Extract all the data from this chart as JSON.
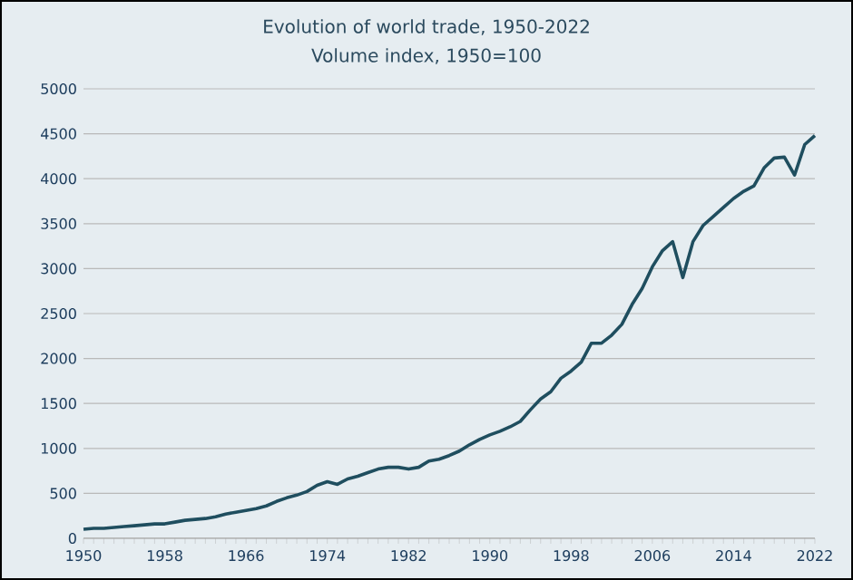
{
  "chart_data": {
    "type": "line",
    "title": "Evolution of world trade, 1950-2022",
    "subtitle": "Volume index, 1950=100",
    "x": [
      1950,
      1951,
      1952,
      1953,
      1954,
      1955,
      1956,
      1957,
      1958,
      1959,
      1960,
      1961,
      1962,
      1963,
      1964,
      1965,
      1966,
      1967,
      1968,
      1969,
      1970,
      1971,
      1972,
      1973,
      1974,
      1975,
      1976,
      1977,
      1978,
      1979,
      1980,
      1981,
      1982,
      1983,
      1984,
      1985,
      1986,
      1987,
      1988,
      1989,
      1990,
      1991,
      1992,
      1993,
      1994,
      1995,
      1996,
      1997,
      1998,
      1999,
      2000,
      2001,
      2002,
      2003,
      2004,
      2005,
      2006,
      2007,
      2008,
      2009,
      2010,
      2011,
      2012,
      2013,
      2014,
      2015,
      2016,
      2017,
      2018,
      2019,
      2020,
      2021,
      2022
    ],
    "series": [
      {
        "color": "#1f4e5f",
        "values": [
          100,
          110,
          110,
          120,
          130,
          140,
          150,
          160,
          160,
          180,
          200,
          210,
          220,
          240,
          270,
          290,
          310,
          330,
          360,
          410,
          450,
          480,
          520,
          590,
          630,
          600,
          660,
          690,
          730,
          770,
          790,
          790,
          770,
          790,
          860,
          880,
          920,
          970,
          1040,
          1100,
          1150,
          1190,
          1240,
          1300,
          1430,
          1550,
          1630,
          1780,
          1860,
          1960,
          2170,
          2170,
          2260,
          2380,
          2600,
          2780,
          3020,
          3200,
          3300,
          2900,
          3300,
          3480,
          3580,
          3680,
          3780,
          3860,
          3920,
          4120,
          4230,
          4240,
          4040,
          4380,
          4480
        ]
      }
    ],
    "xlim": [
      1950,
      2022
    ],
    "ylim": [
      0,
      5000
    ],
    "xticks": [
      1950,
      1958,
      1966,
      1974,
      1982,
      1990,
      1998,
      2006,
      2014,
      2022
    ],
    "yticks": [
      0,
      500,
      1000,
      1500,
      2000,
      2500,
      3000,
      3500,
      4000,
      4500,
      5000
    ],
    "grid": "y",
    "marker": "none",
    "line_style": "solid"
  }
}
